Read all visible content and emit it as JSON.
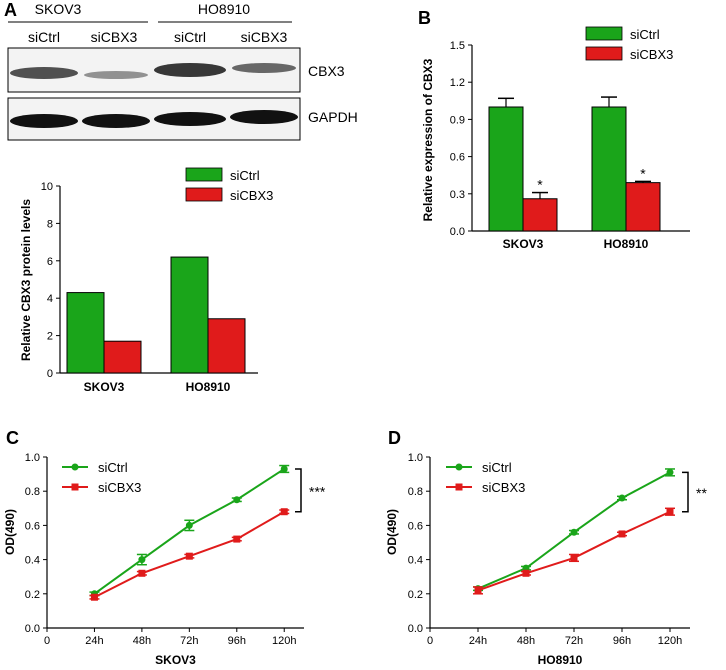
{
  "panels": {
    "A": "A",
    "B": "B",
    "C": "C",
    "D": "D"
  },
  "colors": {
    "siCtrl": "#1aa51a",
    "siCBX3": "#e01b1b",
    "blot_bg": "#f4f4f4",
    "band": "#222222"
  },
  "blot": {
    "cell_lines": [
      "SKOV3",
      "HO8910"
    ],
    "lanes": [
      "siCtrl",
      "siCBX3",
      "siCtrl",
      "siCBX3"
    ],
    "rows": [
      "CBX3",
      "GAPDH"
    ]
  },
  "chart_data": [
    {
      "id": "A-bar",
      "type": "bar",
      "categories": [
        "SKOV3",
        "HO8910"
      ],
      "series": [
        {
          "name": "siCtrl",
          "values": [
            4.3,
            6.2
          ]
        },
        {
          "name": "siCBX3",
          "values": [
            1.7,
            2.9
          ]
        }
      ],
      "ylabel": "Relative CBX3 protein levels",
      "ylim": [
        0,
        10
      ],
      "yticks": [
        "0",
        "2",
        "4",
        "6",
        "8",
        "10"
      ],
      "legend": "top-right"
    },
    {
      "id": "B-bar",
      "type": "bar",
      "categories": [
        "SKOV3",
        "HO8910"
      ],
      "series": [
        {
          "name": "siCtrl",
          "values": [
            1.0,
            1.0
          ],
          "errors": [
            0.07,
            0.08
          ]
        },
        {
          "name": "siCBX3",
          "values": [
            0.26,
            0.39
          ],
          "errors": [
            0.05,
            0.01
          ]
        }
      ],
      "ylabel": "Relative expression of CBX3",
      "ylim": [
        0,
        1.5
      ],
      "yticks": [
        "0.0",
        "0.3",
        "0.6",
        "0.9",
        "1.2",
        "1.5"
      ],
      "significance": [
        "*",
        "*"
      ],
      "legend": "top-right"
    },
    {
      "id": "C-line",
      "type": "line",
      "x": [
        24,
        48,
        72,
        96,
        120
      ],
      "xtick_labels": [
        "24h",
        "48h",
        "72h",
        "96h",
        "120h"
      ],
      "xticks": [
        "0"
      ],
      "series": [
        {
          "name": "siCtrl",
          "values": [
            0.2,
            0.4,
            0.6,
            0.75,
            0.93
          ],
          "errors": [
            0.01,
            0.03,
            0.03,
            0.01,
            0.02
          ]
        },
        {
          "name": "siCBX3",
          "values": [
            0.18,
            0.32,
            0.42,
            0.52,
            0.68
          ],
          "errors": [
            0.01,
            0.01,
            0.01,
            0.01,
            0.01
          ]
        }
      ],
      "xlabel": "SKOV3",
      "ylabel": "OD(490)",
      "xlim": [
        0,
        130
      ],
      "ylim": [
        0,
        1.0
      ],
      "yticks": [
        "0.0",
        "0.2",
        "0.4",
        "0.6",
        "0.8",
        "1.0"
      ],
      "significance": "***",
      "legend": "top-left"
    },
    {
      "id": "D-line",
      "type": "line",
      "x": [
        24,
        48,
        72,
        96,
        120
      ],
      "xtick_labels": [
        "24h",
        "48h",
        "72h",
        "96h",
        "120h"
      ],
      "xticks": [
        "0"
      ],
      "series": [
        {
          "name": "siCtrl",
          "values": [
            0.23,
            0.35,
            0.56,
            0.76,
            0.91
          ],
          "errors": [
            0.01,
            0.01,
            0.01,
            0.01,
            0.02
          ]
        },
        {
          "name": "siCBX3",
          "values": [
            0.22,
            0.32,
            0.41,
            0.55,
            0.68
          ],
          "errors": [
            0.02,
            0.01,
            0.02,
            0.01,
            0.02
          ]
        }
      ],
      "xlabel": "HO8910",
      "ylabel": "OD(490)",
      "xlim": [
        0,
        130
      ],
      "ylim": [
        0,
        1.0
      ],
      "yticks": [
        "0.0",
        "0.2",
        "0.4",
        "0.6",
        "0.8",
        "1.0"
      ],
      "significance": "**",
      "legend": "top-left"
    }
  ]
}
